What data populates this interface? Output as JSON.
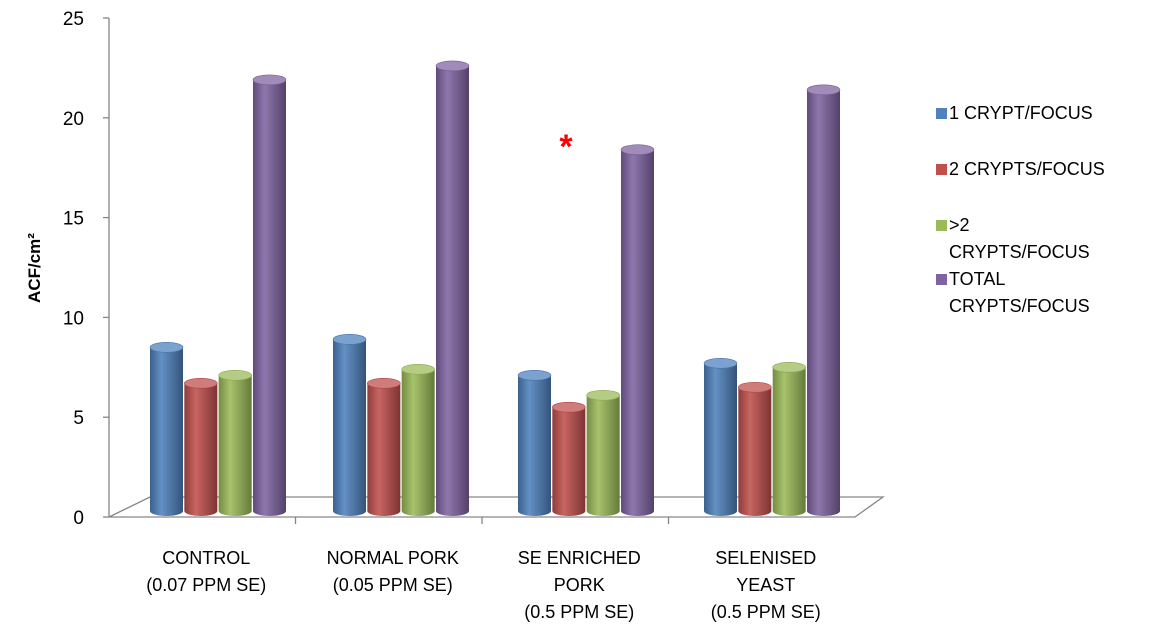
{
  "chart_data": {
    "type": "bar",
    "title": "",
    "xlabel": "",
    "ylabel": "ACF/cm²",
    "ylim": [
      0,
      25
    ],
    "yticks": [
      "0",
      "5",
      "10",
      "15",
      "20",
      "25"
    ],
    "grid": false,
    "legend_position": "right",
    "categories": [
      "CONTROL\n(0.07 PPM SE)",
      "NORMAL PORK\n(0.05 PPM SE)",
      "SE ENRICHED\nPORK\n(0.5 PPM SE)",
      "SELENISED\nYEAST\n(0.5 PPM SE)"
    ],
    "series": [
      {
        "name": "1 CRYPT/FOCUS",
        "color": "#4f81bd",
        "values": [
          8.5,
          8.9,
          7.1,
          7.7
        ]
      },
      {
        "name": "2 CRYPTS/FOCUS",
        "color": "#c0504d",
        "values": [
          6.7,
          6.7,
          5.5,
          6.5
        ]
      },
      {
        "name": ">2\nCRYPTS/FOCUS",
        "color": "#9bbb59",
        "values": [
          7.1,
          7.4,
          6.1,
          7.5
        ]
      },
      {
        "name": "TOTAL\nCRYPTS/FOCUS",
        "color": "#8064a2",
        "values": [
          21.9,
          22.6,
          18.4,
          21.4
        ]
      }
    ],
    "annotations": [
      {
        "text": "*",
        "category_index": 2,
        "color": "#ff0000"
      }
    ]
  }
}
